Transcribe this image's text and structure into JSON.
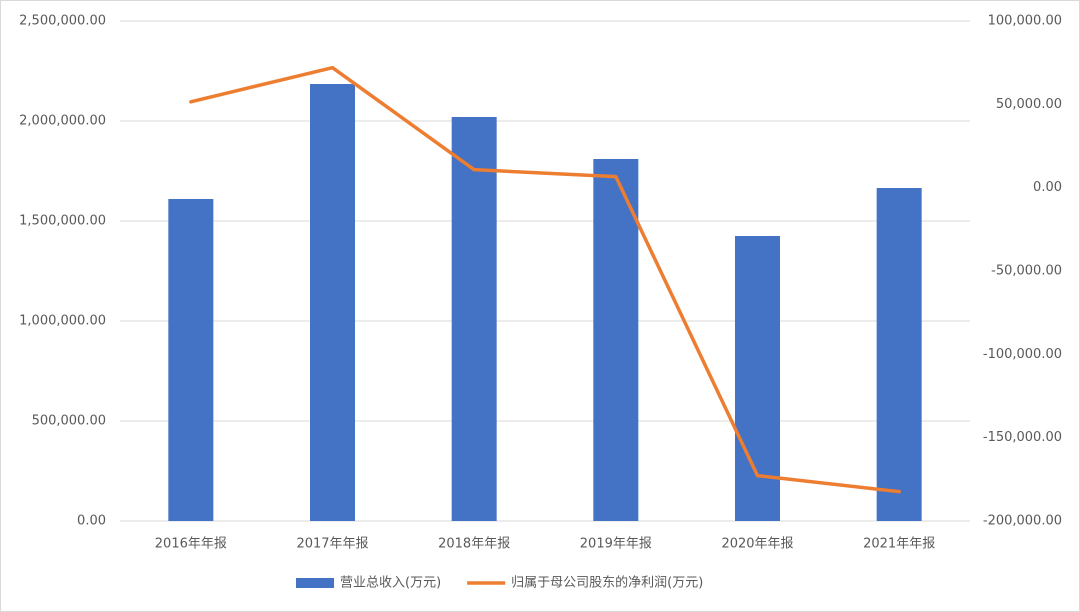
{
  "chart_data": {
    "type": "bar-line",
    "categories": [
      "2016年年报",
      "2017年年报",
      "2018年年报",
      "2019年年报",
      "2020年年报",
      "2021年年报"
    ],
    "series": [
      {
        "name": "营业总收入(万元)",
        "type": "bar",
        "color": "#4472c4",
        "values": [
          1610000,
          2185000,
          2020000,
          1810000,
          1425000,
          1665000
        ]
      },
      {
        "name": "归属于母公司股东的净利润(万元)",
        "type": "line",
        "axis": "y2",
        "color": "#ed7d31",
        "values": [
          51500,
          72000,
          10800,
          6600,
          -172800,
          -182400
        ]
      }
    ],
    "ylim": [
      0,
      2500000
    ],
    "yticks": [
      {
        "value": 0,
        "label": "0.00"
      },
      {
        "value": 500000,
        "label": "500,000.00"
      },
      {
        "value": 1000000,
        "label": "1,000,000.00"
      },
      {
        "value": 1500000,
        "label": "1,500,000.00"
      },
      {
        "value": 2000000,
        "label": "2,000,000.00"
      },
      {
        "value": 2500000,
        "label": "2,500,000.00"
      }
    ],
    "y2lim": [
      -200000,
      100000
    ],
    "y2ticks": [
      {
        "value": -200000,
        "label": "-200,000.00"
      },
      {
        "value": -150000,
        "label": "-150,000.00"
      },
      {
        "value": -100000,
        "label": "-100,000.00"
      },
      {
        "value": -50000,
        "label": "-50,000.00"
      },
      {
        "value": 0,
        "label": "0.00"
      },
      {
        "value": 50000,
        "label": "50,000.00"
      },
      {
        "value": 100000,
        "label": "100,000.00"
      }
    ],
    "grid": true,
    "legend": "bottom"
  }
}
